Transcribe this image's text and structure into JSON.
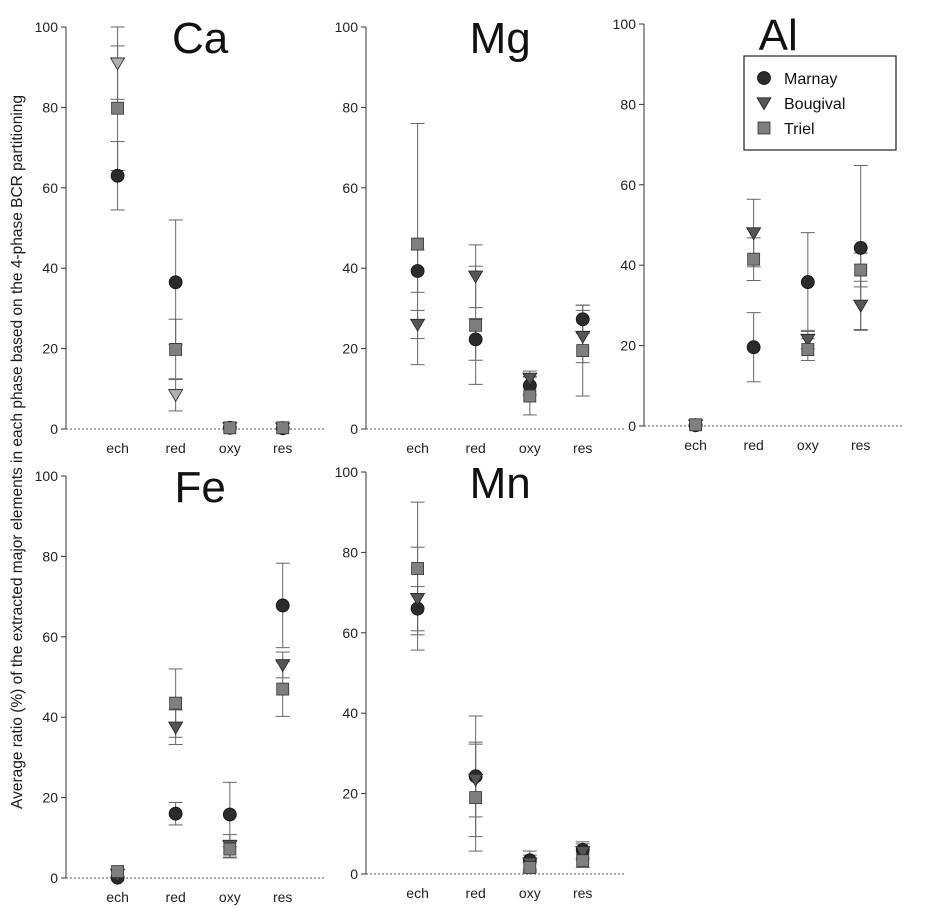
{
  "figure": {
    "ylabel": "Average ratio (%) of the extracted major elements in each phase  based on the 4-phase BCR partitioning"
  },
  "legend": {
    "entries": [
      {
        "name": "Marnay",
        "marker": "circle",
        "color": "#2b2b2b"
      },
      {
        "name": "Bougival",
        "marker": "triangle-down",
        "color": "#555555"
      },
      {
        "name": "Triel",
        "marker": "square",
        "color": "#7f7f7f"
      }
    ]
  },
  "chart_data": [
    {
      "type": "scatter",
      "title": "Ca",
      "categories": [
        "ech",
        "red",
        "oxy",
        "res"
      ],
      "yticks": [
        0,
        20,
        40,
        60,
        80,
        100
      ],
      "ylim": [
        0,
        100
      ],
      "grid": false,
      "series": [
        {
          "name": "Marnay",
          "values": [
            63,
            36.5,
            0.3,
            0.2
          ],
          "errors": [
            8.5,
            15.5,
            0,
            0
          ]
        },
        {
          "name": "Bougival",
          "values": [
            91,
            8.5,
            0.3,
            0.2
          ],
          "errors": [
            9,
            4,
            0,
            0
          ],
          "color": "#b0b0b0"
        },
        {
          "name": "Triel",
          "values": [
            79.8,
            19.8,
            0.3,
            0.3
          ],
          "errors": [
            15.5,
            7.5,
            0,
            0
          ]
        }
      ]
    },
    {
      "type": "scatter",
      "title": "Mg",
      "categories": [
        "ech",
        "red",
        "oxy",
        "res"
      ],
      "yticks": [
        0,
        20,
        40,
        60,
        80,
        100
      ],
      "ylim": [
        0,
        100
      ],
      "grid": false,
      "series": [
        {
          "name": "Marnay",
          "values": [
            39.3,
            22.3,
            10.8,
            27.3
          ],
          "errors": [
            5.3,
            5.2,
            2.3,
            3.5
          ]
        },
        {
          "name": "Bougival",
          "values": [
            26,
            38,
            12.6,
            23
          ],
          "errors": [
            3.5,
            7.8,
            1.8,
            6.5
          ]
        },
        {
          "name": "Triel",
          "values": [
            46,
            25.8,
            8.2,
            19.5
          ],
          "errors": [
            30,
            14.7,
            4.7,
            11.3
          ]
        }
      ]
    },
    {
      "type": "scatter",
      "title": "Al",
      "categories": [
        "ech",
        "red",
        "oxy",
        "res"
      ],
      "yticks": [
        0,
        20,
        40,
        60,
        80,
        100
      ],
      "ylim": [
        0,
        100
      ],
      "grid": false,
      "series": [
        {
          "name": "Marnay",
          "values": [
            0.2,
            19.6,
            35.8,
            44.3
          ],
          "errors": [
            0,
            8.6,
            12.3,
            20.5
          ]
        },
        {
          "name": "Bougival",
          "values": [
            0.2,
            48,
            21.5,
            30
          ],
          "errors": [
            0,
            8.4,
            2.3,
            6
          ]
        },
        {
          "name": "Triel",
          "values": [
            0.3,
            41.5,
            19,
            38.8
          ],
          "errors": [
            0,
            5.3,
            2.7,
            4.2
          ]
        }
      ]
    },
    {
      "type": "scatter",
      "title": "Fe",
      "categories": [
        "ech",
        "red",
        "oxy",
        "res"
      ],
      "yticks": [
        0,
        20,
        40,
        60,
        80,
        100
      ],
      "ylim": [
        0,
        100
      ],
      "grid": false,
      "series": [
        {
          "name": "Marnay",
          "values": [
            0.1,
            16,
            15.8,
            67.8
          ],
          "errors": [
            0,
            2.8,
            8,
            10.5
          ]
        },
        {
          "name": "Bougival",
          "values": [
            0.9,
            37.5,
            8,
            53
          ],
          "errors": [
            0,
            4.3,
            2.8,
            3.2
          ]
        },
        {
          "name": "Triel",
          "values": [
            1.6,
            43.5,
            7.2,
            47
          ],
          "errors": [
            0,
            8.5,
            2.2,
            6.8
          ]
        }
      ]
    },
    {
      "type": "scatter",
      "title": "Mn",
      "categories": [
        "ech",
        "red",
        "oxy",
        "res"
      ],
      "yticks": [
        0,
        20,
        40,
        60,
        80,
        100
      ],
      "ylim": [
        0,
        100
      ],
      "grid": false,
      "series": [
        {
          "name": "Marnay",
          "values": [
            66,
            24.3,
            3.4,
            6
          ],
          "errors": [
            5.5,
            15,
            2.3,
            2
          ]
        },
        {
          "name": "Bougival",
          "values": [
            68.5,
            23.5,
            2.7,
            5.5
          ],
          "errors": [
            12.8,
            9.3,
            2,
            2
          ]
        },
        {
          "name": "Triel",
          "values": [
            76,
            19,
            1.6,
            3.3
          ],
          "errors": [
            16.5,
            13.3,
            1.2,
            1.7
          ]
        }
      ]
    }
  ]
}
